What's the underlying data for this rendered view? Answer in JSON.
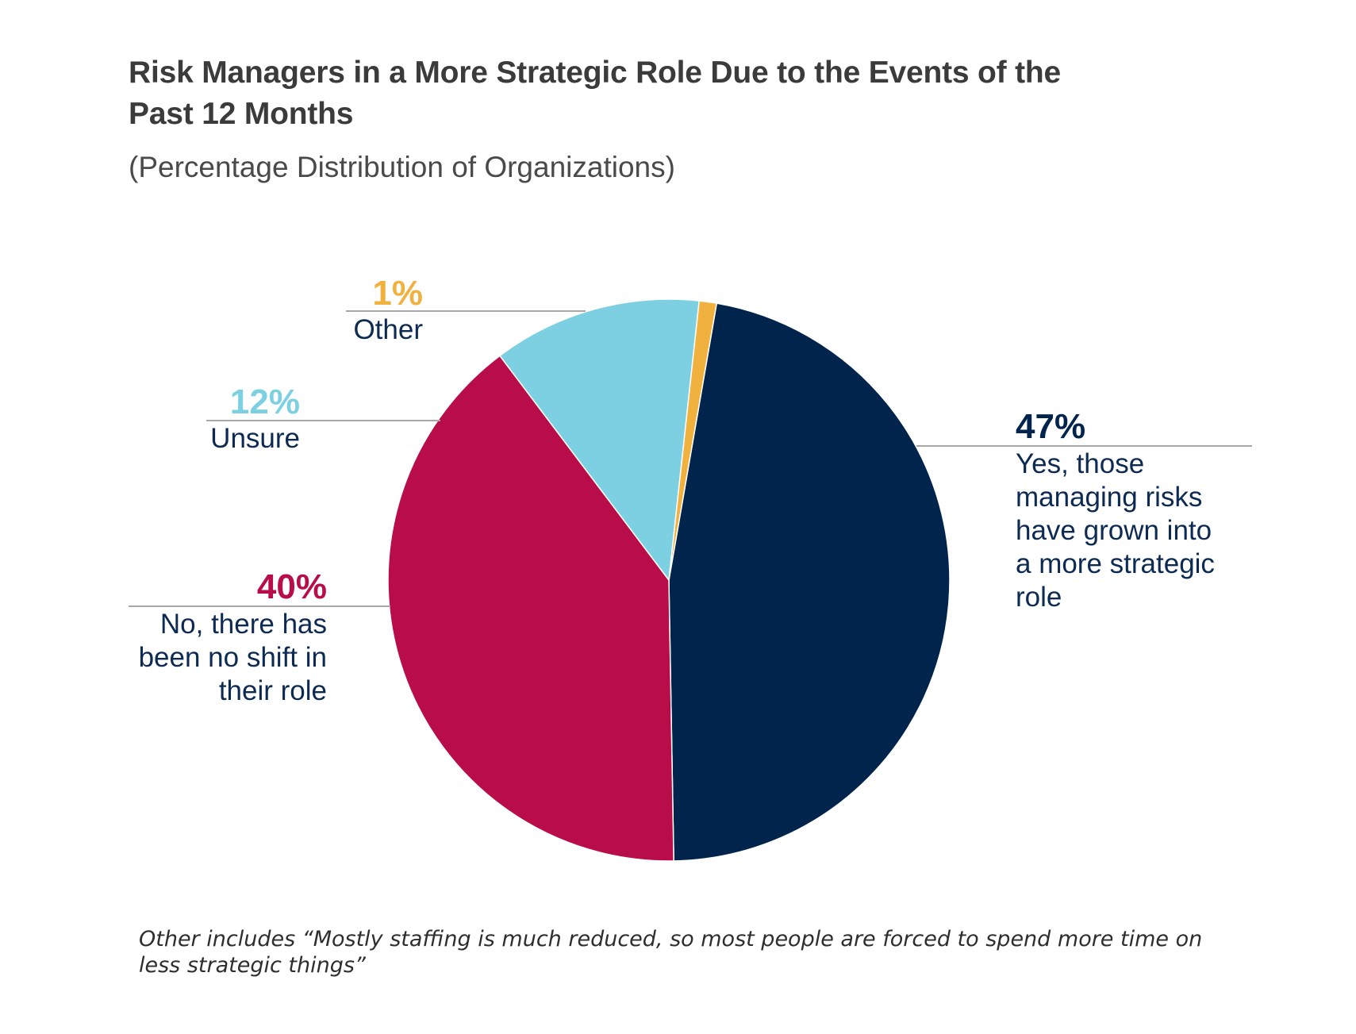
{
  "title": "Risk Managers in a More Strategic Role Due to the Events of the Past 12 Months",
  "subtitle": "(Percentage Distribution of Organizations)",
  "footnote": "Other includes “Mostly staffing is much reduced, so most people are forced to spend more time on less strategic things”",
  "chart_data": {
    "type": "pie",
    "title": "Risk Managers in a More Strategic Role Due to the Events of the Past 12 Months",
    "subtitle": "(Percentage Distribution of Organizations)",
    "unit": "%",
    "slices": [
      {
        "label": "Yes, those managing risks have grown into a more strategic role",
        "label_lines": [
          "Yes, those",
          "managing risks",
          "have grown into",
          "a more strategic",
          "role"
        ],
        "value": 47,
        "value_label": "47%",
        "color": "#00244b"
      },
      {
        "label": "No, there has been no shift in their role",
        "label_lines": [
          "No, there has",
          "been no shift in",
          "their role"
        ],
        "value": 40,
        "value_label": "40%",
        "color": "#b80d49"
      },
      {
        "label": "Unsure",
        "label_lines": [
          "Unsure"
        ],
        "value": 12,
        "value_label": "12%",
        "color": "#7dd0e2"
      },
      {
        "label": "Other",
        "label_lines": [
          "Other"
        ],
        "value": 1,
        "value_label": "1%",
        "color": "#f0b13f"
      }
    ]
  }
}
